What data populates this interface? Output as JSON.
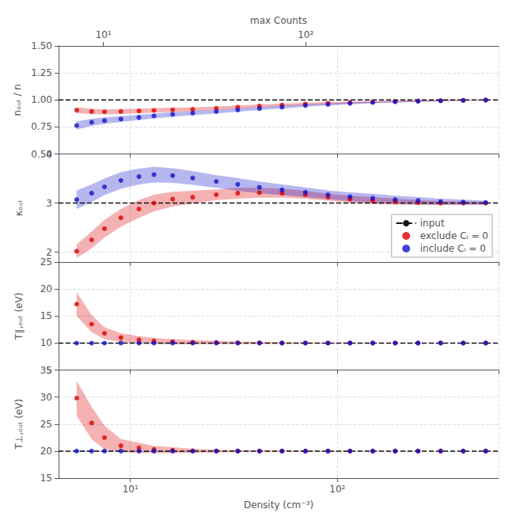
{
  "chart_data": [
    {
      "type": "scatter",
      "y_label": "nₒᵤₜ / n",
      "log": "x",
      "grid": true,
      "tick_labels": "y",
      "x2_label": "max Counts",
      "x2lim": [
        6,
        900
      ],
      "x2ticks": [
        {
          "value": 10,
          "label": "10¹"
        },
        {
          "value": 100,
          "label": "10²"
        }
      ],
      "xlim": [
        4.5,
        600
      ],
      "xticks": [
        {
          "value": 10,
          "label": "10¹"
        },
        {
          "value": 100,
          "label": "10²"
        }
      ],
      "ylim": [
        0.5,
        1.5
      ],
      "yticks": [
        {
          "value": 0.5,
          "label": "0.50"
        },
        {
          "value": 0.75,
          "label": "0.75"
        },
        {
          "value": 1.0,
          "label": "1.00"
        },
        {
          "value": 1.25,
          "label": "1.25"
        },
        {
          "value": 1.5,
          "label": "1.50"
        }
      ],
      "x": [
        5.5,
        6.5,
        7.5,
        9,
        11,
        13,
        16,
        20,
        26,
        33,
        42,
        54,
        70,
        90,
        115,
        148,
        190,
        245,
        315,
        405,
        520
      ],
      "series": [
        {
          "name": "input",
          "type": "line",
          "line_style": "dashed",
          "color": "#111111",
          "x": [
            4.5,
            600
          ],
          "values": [
            1.0,
            1.0
          ]
        },
        {
          "name": "exclude Cᵢ = 0",
          "type": "scatter",
          "color": "#dd0000",
          "values": [
            0.905,
            0.893,
            0.89,
            0.893,
            0.898,
            0.903,
            0.908,
            0.913,
            0.922,
            0.934,
            0.944,
            0.953,
            0.963,
            0.97,
            0.976,
            0.981,
            0.986,
            0.99,
            0.993,
            0.996,
            0.998
          ],
          "lo": [
            0.878,
            0.868,
            0.866,
            0.87,
            0.876,
            0.882,
            0.888,
            0.895,
            0.906,
            0.919,
            0.93,
            0.941,
            0.952,
            0.96,
            0.967,
            0.973,
            0.979,
            0.984,
            0.988,
            0.992,
            0.995
          ],
          "hi": [
            0.932,
            0.918,
            0.914,
            0.916,
            0.92,
            0.924,
            0.928,
            0.931,
            0.938,
            0.949,
            0.958,
            0.965,
            0.974,
            0.98,
            0.985,
            0.989,
            0.993,
            0.996,
            0.998,
            1.0,
            1.001
          ]
        },
        {
          "name": "include Cᵢ = 0",
          "type": "scatter",
          "color": "#1111cc",
          "values": [
            0.763,
            0.793,
            0.808,
            0.823,
            0.838,
            0.852,
            0.866,
            0.878,
            0.892,
            0.907,
            0.92,
            0.933,
            0.948,
            0.958,
            0.968,
            0.976,
            0.983,
            0.988,
            0.992,
            0.996,
            0.999
          ],
          "lo": [
            0.725,
            0.76,
            0.778,
            0.797,
            0.814,
            0.83,
            0.845,
            0.859,
            0.875,
            0.891,
            0.906,
            0.92,
            0.937,
            0.948,
            0.959,
            0.968,
            0.976,
            0.982,
            0.988,
            0.993,
            0.997
          ],
          "hi": [
            0.801,
            0.826,
            0.838,
            0.849,
            0.862,
            0.874,
            0.887,
            0.897,
            0.909,
            0.923,
            0.934,
            0.946,
            0.959,
            0.968,
            0.977,
            0.984,
            0.99,
            0.994,
            0.996,
            0.999,
            1.001
          ]
        }
      ]
    },
    {
      "type": "scatter",
      "y_label": "κₒᵤₜ",
      "log": "x",
      "grid": true,
      "tick_labels": "y",
      "legend": "lower right",
      "xlim": [
        4.5,
        600
      ],
      "xticks": [
        {
          "value": 10,
          "label": "10¹"
        },
        {
          "value": 100,
          "label": "10²"
        }
      ],
      "ylim": [
        1.8,
        4.0
      ],
      "yticks": [
        2,
        3,
        4
      ],
      "x": [
        5.5,
        6.5,
        7.5,
        9,
        11,
        13,
        16,
        20,
        26,
        33,
        42,
        54,
        70,
        90,
        115,
        148,
        190,
        245,
        315,
        405,
        520
      ],
      "series": [
        {
          "name": "input",
          "type": "line",
          "line_style": "dashed",
          "color": "#111111",
          "x": [
            4.5,
            600
          ],
          "values": [
            3.0,
            3.0
          ]
        },
        {
          "name": "exclude Cᵢ = 0",
          "type": "scatter",
          "color": "#dd0000",
          "values": [
            2.02,
            2.25,
            2.48,
            2.7,
            2.88,
            3.0,
            3.08,
            3.12,
            3.17,
            3.2,
            3.21,
            3.2,
            3.17,
            3.12,
            3.08,
            3.05,
            3.03,
            3.01,
            3.0,
            3.0,
            3.0
          ],
          "lo": [
            1.88,
            2.08,
            2.3,
            2.52,
            2.7,
            2.83,
            2.93,
            2.99,
            3.06,
            3.09,
            3.11,
            3.11,
            3.09,
            3.05,
            3.01,
            2.98,
            2.97,
            2.96,
            2.96,
            2.97,
            2.97
          ],
          "hi": [
            2.16,
            2.42,
            2.66,
            2.88,
            3.06,
            3.17,
            3.23,
            3.25,
            3.28,
            3.31,
            3.31,
            3.29,
            3.25,
            3.19,
            3.15,
            3.12,
            3.09,
            3.06,
            3.04,
            3.03,
            3.03
          ]
        },
        {
          "name": "include Cᵢ = 0",
          "type": "scatter",
          "color": "#1111cc",
          "values": [
            3.07,
            3.2,
            3.33,
            3.46,
            3.54,
            3.58,
            3.56,
            3.51,
            3.44,
            3.38,
            3.32,
            3.27,
            3.22,
            3.17,
            3.13,
            3.1,
            3.07,
            3.05,
            3.03,
            3.02,
            3.01
          ],
          "lo": [
            2.88,
            3.02,
            3.16,
            3.29,
            3.38,
            3.42,
            3.41,
            3.37,
            3.31,
            3.25,
            3.2,
            3.16,
            3.12,
            3.08,
            3.04,
            3.01,
            2.99,
            2.98,
            2.97,
            2.97,
            2.97
          ],
          "hi": [
            3.26,
            3.38,
            3.5,
            3.63,
            3.7,
            3.74,
            3.71,
            3.65,
            3.57,
            3.51,
            3.44,
            3.38,
            3.32,
            3.26,
            3.22,
            3.19,
            3.15,
            3.12,
            3.09,
            3.07,
            3.05
          ]
        }
      ]
    },
    {
      "type": "scatter",
      "y_label": "T∥,ₒᵤₜ (eV)",
      "log": "x",
      "grid": true,
      "tick_labels": "y",
      "xlim": [
        4.5,
        600
      ],
      "xticks": [
        {
          "value": 10,
          "label": "10¹"
        },
        {
          "value": 100,
          "label": "10²"
        }
      ],
      "ylim": [
        5,
        25
      ],
      "yticks": [
        5,
        10,
        15,
        20,
        25
      ],
      "x": [
        5.5,
        6.5,
        7.5,
        9,
        11,
        13,
        16,
        20,
        26,
        33,
        42,
        54,
        70,
        90,
        115,
        148,
        190,
        245,
        315,
        405,
        520
      ],
      "series": [
        {
          "name": "input",
          "type": "line",
          "line_style": "dashed",
          "color": "#111111",
          "x": [
            4.5,
            600
          ],
          "values": [
            10.0,
            10.0
          ]
        },
        {
          "name": "exclude Cᵢ = 0",
          "type": "scatter",
          "color": "#dd0000",
          "values": [
            17.2,
            13.5,
            11.8,
            11.0,
            10.6,
            10.4,
            10.25,
            10.15,
            10.1,
            10.05,
            10.03,
            10.01,
            10.0,
            10.0,
            10.0,
            10.0,
            10.0,
            10.0,
            10.0,
            10.0,
            10.0
          ],
          "lo": [
            15.0,
            12.0,
            10.7,
            10.2,
            9.95,
            9.85,
            9.78,
            9.78,
            9.8,
            9.83,
            9.86,
            9.89,
            9.91,
            9.93,
            9.95,
            9.97,
            9.98,
            9.98,
            9.99,
            9.99,
            9.99
          ],
          "hi": [
            19.4,
            15.2,
            12.9,
            11.8,
            11.25,
            10.95,
            10.72,
            10.52,
            10.4,
            10.27,
            10.2,
            10.13,
            10.09,
            10.07,
            10.05,
            10.03,
            10.02,
            10.02,
            10.01,
            10.01,
            10.01
          ]
        },
        {
          "name": "include Cᵢ = 0",
          "type": "scatter",
          "color": "#1111cc",
          "values": [
            9.98,
            9.98,
            9.98,
            9.99,
            9.99,
            9.99,
            10.0,
            10.0,
            10.0,
            10.0,
            10.0,
            10.0,
            10.0,
            10.0,
            10.0,
            10.0,
            10.0,
            10.0,
            10.0,
            10.0,
            10.0
          ],
          "lo": [
            9.9,
            9.91,
            9.92,
            9.93,
            9.94,
            9.95,
            9.96,
            9.97,
            9.97,
            9.98,
            9.98,
            9.99,
            9.99,
            9.99,
            9.99,
            9.99,
            9.99,
            9.99,
            9.99,
            9.99,
            9.99
          ],
          "hi": [
            10.06,
            10.05,
            10.04,
            10.05,
            10.04,
            10.03,
            10.04,
            10.03,
            10.03,
            10.02,
            10.02,
            10.01,
            10.01,
            10.01,
            10.01,
            10.01,
            10.01,
            10.01,
            10.01,
            10.01,
            10.01
          ]
        }
      ]
    },
    {
      "type": "scatter",
      "y_label": "T⊥,ₒᵤₜ (eV)",
      "x_label": "Density (cm⁻³)",
      "log": "x",
      "grid": true,
      "xlim": [
        4.5,
        600
      ],
      "xticks": [
        {
          "value": 10,
          "label": "10¹"
        },
        {
          "value": 100,
          "label": "10²"
        }
      ],
      "ylim": [
        15,
        35
      ],
      "yticks": [
        15,
        20,
        25,
        30,
        35
      ],
      "x": [
        5.5,
        6.5,
        7.5,
        9,
        11,
        13,
        16,
        20,
        26,
        33,
        42,
        54,
        70,
        90,
        115,
        148,
        190,
        245,
        315,
        405,
        520
      ],
      "series": [
        {
          "name": "input",
          "type": "line",
          "line_style": "dashed",
          "color": "#111111",
          "x": [
            4.5,
            600
          ],
          "values": [
            20.0,
            20.0
          ]
        },
        {
          "name": "exclude Cᵢ = 0",
          "type": "scatter",
          "color": "#dd0000",
          "values": [
            29.8,
            25.2,
            22.5,
            21.0,
            20.6,
            20.3,
            20.15,
            20.05,
            20.02,
            20.0,
            20.0,
            20.0,
            20.0,
            20.0,
            20.0,
            20.0,
            20.0,
            20.0,
            20.0,
            20.0,
            20.0
          ],
          "lo": [
            26.5,
            22.2,
            20.3,
            19.8,
            19.65,
            19.6,
            19.6,
            19.68,
            19.75,
            19.82,
            19.87,
            19.9,
            19.92,
            19.94,
            19.96,
            19.97,
            19.98,
            19.99,
            19.99,
            20.0,
            20.0
          ],
          "hi": [
            33.0,
            28.2,
            24.7,
            22.2,
            21.55,
            20.95,
            20.7,
            20.42,
            20.29,
            20.18,
            20.13,
            20.1,
            20.08,
            20.06,
            20.04,
            20.03,
            20.02,
            20.01,
            20.01,
            20.0,
            20.0
          ]
        },
        {
          "name": "include Cᵢ = 0",
          "type": "scatter",
          "color": "#1111cc",
          "values": [
            20.0,
            20.0,
            20.0,
            20.0,
            20.0,
            20.0,
            20.0,
            20.0,
            20.0,
            20.0,
            20.0,
            20.0,
            20.0,
            20.0,
            20.0,
            20.0,
            20.0,
            20.0,
            20.0,
            20.0,
            20.0
          ],
          "lo": [
            19.89,
            19.91,
            19.92,
            19.93,
            19.94,
            19.95,
            19.96,
            19.96,
            19.97,
            19.97,
            19.98,
            19.98,
            19.99,
            19.99,
            19.99,
            19.99,
            19.99,
            20.0,
            20.0,
            20.0,
            20.0
          ],
          "hi": [
            20.11,
            20.09,
            20.08,
            20.07,
            20.06,
            20.05,
            20.04,
            20.04,
            20.03,
            20.03,
            20.02,
            20.02,
            20.01,
            20.01,
            20.01,
            20.01,
            20.01,
            20.0,
            20.0,
            20.0,
            20.0
          ]
        }
      ]
    }
  ]
}
